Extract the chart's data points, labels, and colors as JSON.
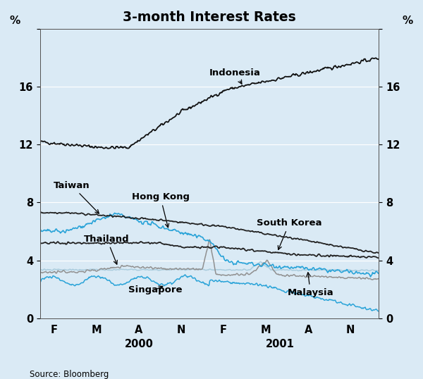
{
  "title": "3-month Interest Rates",
  "background_color": "#daeaf5",
  "plot_bg_color": "#daeaf5",
  "ylim": [
    0,
    20
  ],
  "yticks": [
    0,
    4,
    8,
    12,
    16,
    20
  ],
  "yticklabels": [
    "0",
    "4",
    "8",
    "12",
    "16",
    ""
  ],
  "ylabel_left": "%",
  "ylabel_right": "%",
  "xtick_labels": [
    "F",
    "M",
    "A",
    "N",
    "F",
    "M",
    "A",
    "N"
  ],
  "year_labels": [
    [
      "2000",
      0.292
    ],
    [
      "2001",
      0.708
    ]
  ],
  "source": "Source: Bloomberg",
  "n_points": 500
}
